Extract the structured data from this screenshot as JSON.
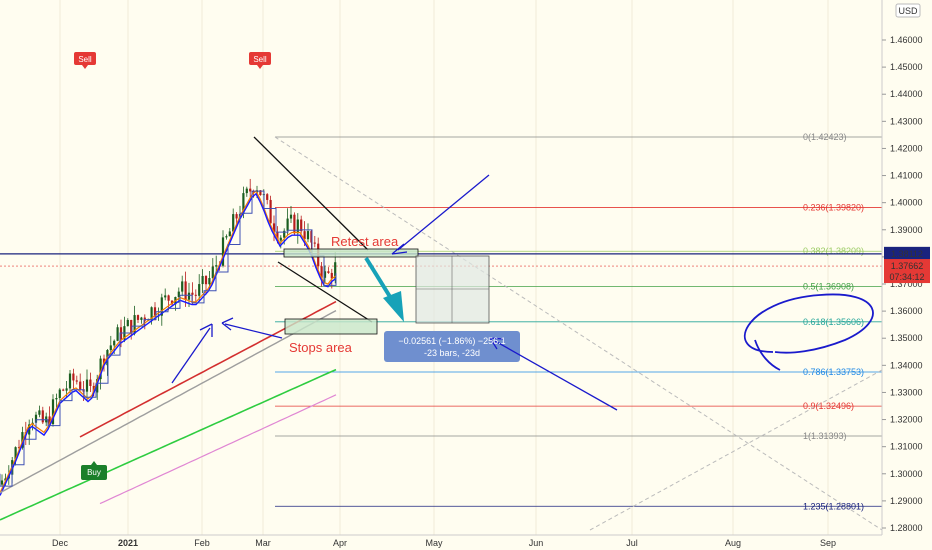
{
  "chart_data": {
    "type": "candlestick",
    "currency_badge": "USD",
    "price_axis": {
      "ylim": [
        1.275,
        1.475
      ],
      "ticks": [
        "1.46000",
        "1.45000",
        "1.44000",
        "1.43000",
        "1.42000",
        "1.41000",
        "1.40000",
        "1.39000",
        "1.38000",
        "1.37000",
        "1.36000",
        "1.35000",
        "1.34000",
        "1.33000",
        "1.32000",
        "1.31000",
        "1.30000",
        "1.29000",
        "1.28000"
      ]
    },
    "time_axis": {
      "ticks": [
        "Dec",
        "2021",
        "Feb",
        "Mar",
        "Apr",
        "May",
        "Jun",
        "Jul",
        "Aug",
        "Sep"
      ]
    },
    "current_price": {
      "value": 1.37662,
      "label": "1.37662",
      "countdown": "07:34:12",
      "color": "#e53935"
    },
    "level_line": {
      "value": 1.38112,
      "label": "1.38112",
      "color": "#1a237e"
    },
    "fib_levels": [
      {
        "label": "0(1.42423)",
        "value": 1.42423,
        "color": "#888888"
      },
      {
        "label": "0.236(1.39820)",
        "value": 1.3982,
        "color": "#e53935"
      },
      {
        "label": "0.382(1.38209)",
        "value": 1.38209,
        "color": "#9ccc65"
      },
      {
        "label": "0.5(1.36908)",
        "value": 1.36908,
        "color": "#43a047"
      },
      {
        "label": "0.618(1.35606)",
        "value": 1.35606,
        "color": "#26a69a"
      },
      {
        "label": "0.786(1.33753)",
        "value": 1.33753,
        "color": "#1e88e5"
      },
      {
        "label": "0.9(1.32496)",
        "value": 1.32496,
        "color": "#e53935"
      },
      {
        "label": "1(1.31393)",
        "value": 1.31393,
        "color": "#888888"
      },
      {
        "label": "1.235(1.28801)",
        "value": 1.28801,
        "color": "#1a237e"
      }
    ],
    "signals": [
      {
        "label": "Sell",
        "type": "sell"
      },
      {
        "label": "Sell",
        "type": "sell"
      },
      {
        "label": "Buy",
        "type": "buy"
      }
    ],
    "annotations": {
      "retest": "Retest area",
      "stops": "Stops area",
      "measure_line1": "−0.02561 (−1.86%) −256.1",
      "measure_line2": "-23 bars, -23d"
    },
    "colors": {
      "bull": "#1b5e20",
      "bear": "#b71c1c",
      "ma_red": "#d32f2f",
      "ma_gray": "#9e9e9e",
      "ma_green": "#2ecc40",
      "ma_pink": "#e086d3",
      "ma_orange": "#f57c00",
      "ma_blue": "#1a1aff",
      "kijun": "#3f51b5",
      "hand_drawn": "#1a1acc",
      "teal_arrow": "#17a2b8"
    }
  }
}
